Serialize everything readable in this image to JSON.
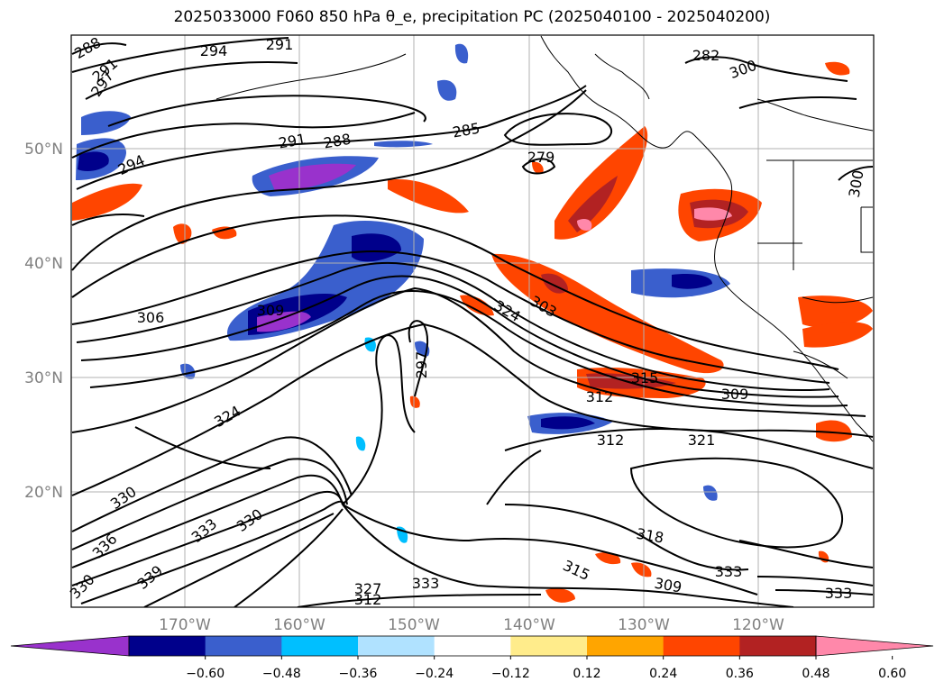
{
  "title": "2025033000 F060 850 hPa θ_e, precipitation PC (2025040100 - 2025040200)",
  "lat_labels": [
    "50°N",
    "40°N",
    "30°N",
    "20°N"
  ],
  "lon_labels": [
    "170°W",
    "160°W",
    "150°W",
    "140°W",
    "130°W",
    "120°W"
  ],
  "contour_labels": [
    "288",
    "291",
    "294",
    "291",
    "297",
    "294",
    "291",
    "288",
    "285",
    "279",
    "282",
    "300",
    "300",
    "306",
    "309",
    "324",
    "297",
    "303",
    "315",
    "312",
    "309",
    "312",
    "321",
    "324",
    "330",
    "336",
    "330",
    "333",
    "339",
    "330",
    "327",
    "333",
    "312",
    "318",
    "315",
    "309",
    "333",
    "333"
  ],
  "colorbar": {
    "ticks": [
      "−0.60",
      "−0.48",
      "−0.36",
      "−0.24",
      "−0.12",
      "0.12",
      "0.24",
      "0.36",
      "0.48",
      "0.60"
    ],
    "colors": [
      "#9932cc",
      "#00008b",
      "#3a5fcd",
      "#00bfff",
      "#b0e2ff",
      "#ffffff",
      "#ffec8b",
      "#ffa500",
      "#ff4500",
      "#b22222",
      "#ff88aa"
    ]
  },
  "colors": {
    "grid": "#b0b0b0",
    "contour": "#000000",
    "coast": "#000000"
  }
}
